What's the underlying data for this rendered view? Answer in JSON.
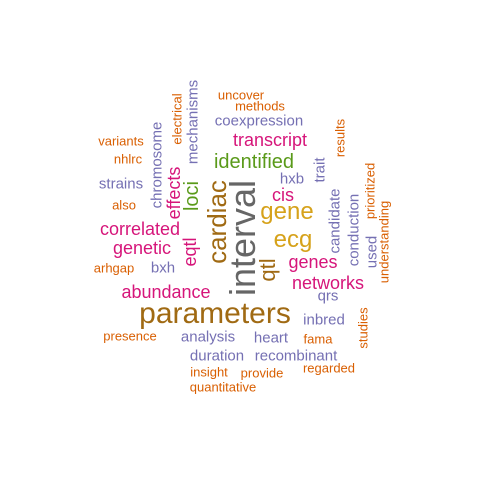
{
  "palette": {
    "gray": "#666666",
    "gold": "#d6a21b",
    "brown": "#a06a13",
    "magenta": "#d6157a",
    "green": "#5a9a1a",
    "purple": "#7570b3",
    "orange": "#d95f02"
  },
  "words": [
    {
      "text": "interval",
      "color": "gray"
    },
    {
      "text": "parameters",
      "color": "brown"
    },
    {
      "text": "cardiac",
      "color": "brown"
    },
    {
      "text": "gene",
      "color": "gold"
    },
    {
      "text": "ecg",
      "color": "gold"
    },
    {
      "text": "qtl",
      "color": "brown"
    },
    {
      "text": "identified",
      "color": "green"
    },
    {
      "text": "loci",
      "color": "green"
    },
    {
      "text": "transcript",
      "color": "magenta"
    },
    {
      "text": "correlated",
      "color": "magenta"
    },
    {
      "text": "genetic",
      "color": "magenta"
    },
    {
      "text": "abundance",
      "color": "magenta"
    },
    {
      "text": "networks",
      "color": "magenta"
    },
    {
      "text": "genes",
      "color": "magenta"
    },
    {
      "text": "effects",
      "color": "magenta"
    },
    {
      "text": "eqtl",
      "color": "magenta"
    },
    {
      "text": "cis",
      "color": "magenta"
    },
    {
      "text": "coexpression",
      "color": "purple"
    },
    {
      "text": "mechanisms",
      "color": "purple"
    },
    {
      "text": "chromosome",
      "color": "purple"
    },
    {
      "text": "strains",
      "color": "purple"
    },
    {
      "text": "bxh",
      "color": "purple"
    },
    {
      "text": "hxb",
      "color": "purple"
    },
    {
      "text": "trait",
      "color": "purple"
    },
    {
      "text": "candidate",
      "color": "purple"
    },
    {
      "text": "conduction",
      "color": "purple"
    },
    {
      "text": "used",
      "color": "purple"
    },
    {
      "text": "qrs",
      "color": "purple"
    },
    {
      "text": "inbred",
      "color": "purple"
    },
    {
      "text": "analysis",
      "color": "purple"
    },
    {
      "text": "heart",
      "color": "purple"
    },
    {
      "text": "duration",
      "color": "purple"
    },
    {
      "text": "recombinant",
      "color": "purple"
    },
    {
      "text": "uncover",
      "color": "orange"
    },
    {
      "text": "methods",
      "color": "orange"
    },
    {
      "text": "electrical",
      "color": "orange"
    },
    {
      "text": "variants",
      "color": "orange"
    },
    {
      "text": "nhlrc",
      "color": "orange"
    },
    {
      "text": "also",
      "color": "orange"
    },
    {
      "text": "arhgap",
      "color": "orange"
    },
    {
      "text": "results",
      "color": "orange"
    },
    {
      "text": "prioritized",
      "color": "orange"
    },
    {
      "text": "understanding",
      "color": "orange"
    },
    {
      "text": "studies",
      "color": "orange"
    },
    {
      "text": "presence",
      "color": "orange"
    },
    {
      "text": "fama",
      "color": "orange"
    },
    {
      "text": "regarded",
      "color": "orange"
    },
    {
      "text": "insight",
      "color": "orange"
    },
    {
      "text": "provide",
      "color": "orange"
    },
    {
      "text": "quantitative",
      "color": "orange"
    }
  ]
}
